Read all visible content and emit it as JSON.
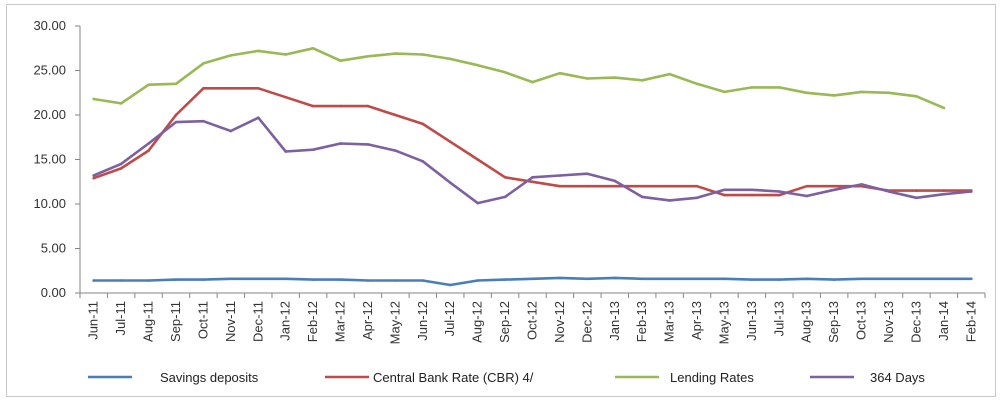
{
  "chart_data": {
    "type": "line",
    "title": "",
    "xlabel": "",
    "ylabel": "",
    "ylim": [
      0,
      30
    ],
    "yticks": [
      "0.00",
      "5.00",
      "10.00",
      "15.00",
      "20.00",
      "25.00",
      "30.00"
    ],
    "grid": false,
    "legend_position": "bottom",
    "categories": [
      "Jun-11",
      "Jul-11",
      "Aug-11",
      "Sep-11",
      "Oct-11",
      "Nov-11",
      "Dec-11",
      "Jan-12",
      "Feb-12",
      "Mar-12",
      "Apr-12",
      "May-12",
      "Jun-12",
      "Jul-12",
      "Aug-12",
      "Sep-12",
      "Oct-12",
      "Nov-12",
      "Dec-12",
      "Jan-13",
      "Feb-13",
      "Mar-13",
      "Apr-13",
      "May-13",
      "Jun-13",
      "Jul-13",
      "Aug-13",
      "Sep-13",
      "Oct-13",
      "Nov-13",
      "Dec-13",
      "Jan-14",
      "Feb-14"
    ],
    "series": [
      {
        "name": "Savings deposits",
        "color": "#4a7ebb",
        "values": [
          1.4,
          1.4,
          1.4,
          1.5,
          1.5,
          1.6,
          1.6,
          1.6,
          1.5,
          1.5,
          1.4,
          1.4,
          1.4,
          0.9,
          1.4,
          1.5,
          1.6,
          1.7,
          1.6,
          1.7,
          1.6,
          1.6,
          1.6,
          1.6,
          1.5,
          1.5,
          1.6,
          1.5,
          1.6,
          1.6,
          1.6,
          1.6,
          1.6
        ]
      },
      {
        "name": "Central Bank Rate (CBR) 4/",
        "color": "#be4b48",
        "values": [
          12.9,
          14.0,
          16.0,
          20.0,
          23.0,
          23.0,
          23.0,
          22.0,
          21.0,
          21.0,
          21.0,
          20.0,
          19.0,
          17.0,
          15.0,
          13.0,
          12.5,
          12.0,
          12.0,
          12.0,
          12.0,
          12.0,
          12.0,
          11.0,
          11.0,
          11.0,
          12.0,
          12.0,
          12.0,
          11.5,
          11.5,
          11.5,
          11.5
        ]
      },
      {
        "name": "Lending Rates",
        "color": "#98b954",
        "values": [
          21.8,
          21.3,
          23.4,
          23.5,
          25.8,
          26.7,
          27.2,
          26.8,
          27.5,
          26.1,
          26.6,
          26.9,
          26.8,
          26.3,
          25.6,
          24.8,
          23.7,
          24.7,
          24.1,
          24.2,
          23.9,
          24.6,
          23.5,
          22.6,
          23.1,
          23.1,
          22.5,
          22.2,
          22.6,
          22.5,
          22.1,
          20.8,
          null
        ]
      },
      {
        "name": "364 Days",
        "color": "#7d60a0",
        "values": [
          13.2,
          14.5,
          16.8,
          19.2,
          19.3,
          18.2,
          19.7,
          15.9,
          16.1,
          16.8,
          16.7,
          16.0,
          14.8,
          12.4,
          10.1,
          10.8,
          13.0,
          13.2,
          13.4,
          12.6,
          10.8,
          10.4,
          10.7,
          11.6,
          11.6,
          11.4,
          10.9,
          11.6,
          12.2,
          11.4,
          10.7,
          11.1,
          11.4
        ]
      }
    ]
  }
}
